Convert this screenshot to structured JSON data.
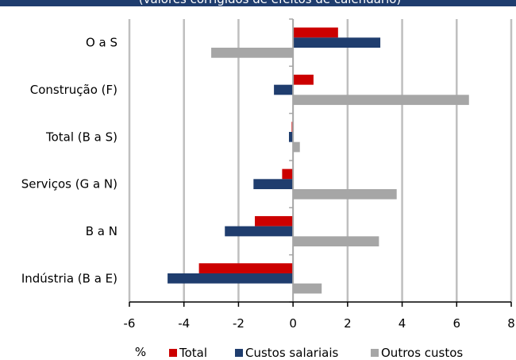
{
  "banner": {
    "text": "(valores corrigidos de efeitos de calendário)",
    "color": "#1f3d6e"
  },
  "chart_data": {
    "type": "bar",
    "orientation": "horizontal",
    "categories": [
      "O a S",
      "Construção (F)",
      "Total (B a S)",
      "Serviços (G a N)",
      "B a N",
      "Indústria (B a E)"
    ],
    "series": [
      {
        "name": "Total",
        "color": "#cc0000",
        "values": [
          1.65,
          0.75,
          -0.05,
          -0.4,
          -1.4,
          -3.45
        ]
      },
      {
        "name": "Custos salariais",
        "color": "#1f3d6e",
        "values": [
          3.2,
          -0.7,
          -0.15,
          -1.45,
          -2.5,
          -4.6
        ]
      },
      {
        "name": "Outros custos",
        "color": "#a6a6a6",
        "values": [
          -3.0,
          6.45,
          0.25,
          3.8,
          3.15,
          1.05
        ]
      }
    ],
    "xlim": [
      -6,
      8
    ],
    "xticks": [
      -6,
      -4,
      -2,
      0,
      2,
      4,
      6,
      8
    ],
    "xlabel": "%",
    "grid": "vertical",
    "legend": "bottom"
  }
}
